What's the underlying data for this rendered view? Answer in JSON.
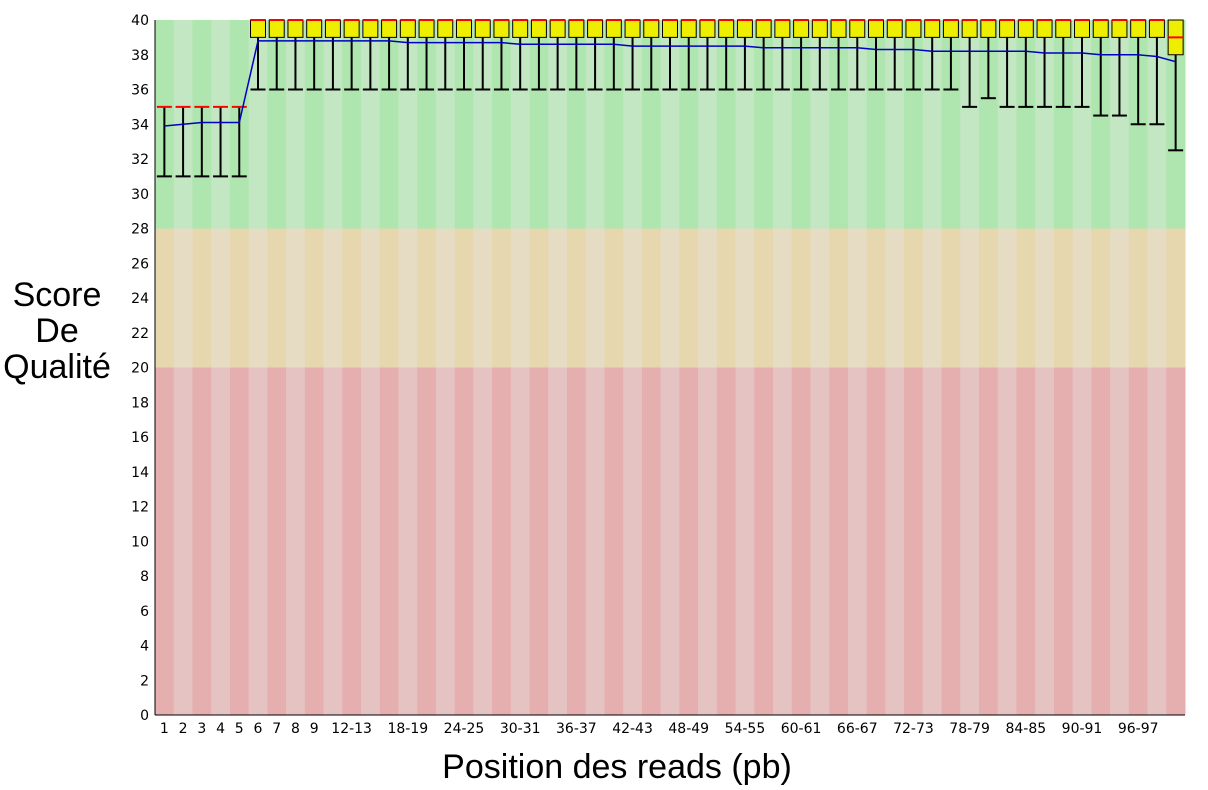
{
  "chart_data": {
    "type": "box",
    "title": "",
    "xlabel": "Position des reads (pb)",
    "ylabel": [
      "Score",
      "De",
      "Qualité"
    ],
    "ylim": [
      0,
      40
    ],
    "yticks": [
      0,
      2,
      4,
      6,
      8,
      10,
      12,
      14,
      16,
      18,
      20,
      22,
      24,
      26,
      28,
      30,
      32,
      34,
      36,
      38,
      40
    ],
    "bands": [
      {
        "name": "poor",
        "from": 0,
        "to": 20,
        "colors": [
          "#e6afaf",
          "#e6c3c3"
        ]
      },
      {
        "name": "reasonable",
        "from": 20,
        "to": 28,
        "colors": [
          "#e6d7af",
          "#e6dcc3"
        ]
      },
      {
        "name": "good",
        "from": 28,
        "to": 40,
        "colors": [
          "#afe6af",
          "#c3e6c3"
        ]
      }
    ],
    "categories": [
      "1",
      "2",
      "3",
      "4",
      "5",
      "6",
      "7",
      "8",
      "9",
      "10-11",
      "12-13",
      "14-15",
      "16-17",
      "18-19",
      "20-21",
      "22-23",
      "24-25",
      "26-27",
      "28-29",
      "30-31",
      "32-33",
      "34-35",
      "36-37",
      "38-39",
      "40-41",
      "42-43",
      "44-45",
      "46-47",
      "48-49",
      "50-51",
      "52-53",
      "54-55",
      "56-57",
      "58-59",
      "60-61",
      "62-63",
      "64-65",
      "66-67",
      "68-69",
      "70-71",
      "72-73",
      "74-75",
      "76-77",
      "78-79",
      "80-81",
      "82-83",
      "84-85",
      "86-87",
      "88-89",
      "90-91",
      "92-93",
      "94-95",
      "96-97",
      "98-99",
      "100-101"
    ],
    "visible_tick_labels": [
      "1",
      "2",
      "3",
      "4",
      "5",
      "6",
      "7",
      "8",
      "9",
      "12-13",
      "18-19",
      "24-25",
      "30-31",
      "36-37",
      "42-43",
      "48-49",
      "54-55",
      "60-61",
      "66-67",
      "72-73",
      "78-79",
      "84-85",
      "90-91",
      "96-97"
    ],
    "lower_whisker": [
      31,
      31,
      31,
      31,
      31,
      36,
      36,
      36,
      36,
      36,
      36,
      36,
      36,
      36,
      36,
      36,
      36,
      36,
      36,
      36,
      36,
      36,
      36,
      36,
      36,
      36,
      36,
      36,
      36,
      36,
      36,
      36,
      36,
      36,
      36,
      36,
      36,
      36,
      36,
      36,
      36,
      36,
      36,
      35,
      35.5,
      35,
      35,
      35,
      35,
      35,
      34.5,
      34.5,
      34,
      34,
      32.5
    ],
    "q1": [
      35,
      35,
      35,
      35,
      35,
      39,
      39,
      39,
      39,
      39,
      39,
      39,
      39,
      39,
      39,
      39,
      39,
      39,
      39,
      39,
      39,
      39,
      39,
      39,
      39,
      39,
      39,
      39,
      39,
      39,
      39,
      39,
      39,
      39,
      39,
      39,
      39,
      39,
      39,
      39,
      39,
      39,
      39,
      39,
      39,
      39,
      39,
      39,
      39,
      39,
      39,
      39,
      39,
      39,
      38
    ],
    "median": [
      35,
      35,
      35,
      35,
      35,
      40,
      40,
      40,
      40,
      40,
      40,
      40,
      40,
      40,
      40,
      40,
      40,
      40,
      40,
      40,
      40,
      40,
      40,
      40,
      40,
      40,
      40,
      40,
      40,
      40,
      40,
      40,
      40,
      40,
      40,
      40,
      40,
      40,
      40,
      40,
      40,
      40,
      40,
      40,
      40,
      40,
      40,
      40,
      40,
      40,
      40,
      40,
      40,
      40,
      39
    ],
    "q3": [
      35,
      35,
      35,
      35,
      35,
      40,
      40,
      40,
      40,
      40,
      40,
      40,
      40,
      40,
      40,
      40,
      40,
      40,
      40,
      40,
      40,
      40,
      40,
      40,
      40,
      40,
      40,
      40,
      40,
      40,
      40,
      40,
      40,
      40,
      40,
      40,
      40,
      40,
      40,
      40,
      40,
      40,
      40,
      40,
      40,
      40,
      40,
      40,
      40,
      40,
      40,
      40,
      40,
      40,
      40
    ],
    "upper_whisker": [
      35,
      35,
      35,
      35,
      35,
      40,
      40,
      40,
      40,
      40,
      40,
      40,
      40,
      40,
      40,
      40,
      40,
      40,
      40,
      40,
      40,
      40,
      40,
      40,
      40,
      40,
      40,
      40,
      40,
      40,
      40,
      40,
      40,
      40,
      40,
      40,
      40,
      40,
      40,
      40,
      40,
      40,
      40,
      40,
      40,
      40,
      40,
      40,
      40,
      40,
      40,
      40,
      40,
      40,
      40
    ],
    "mean": [
      33.9,
      34.0,
      34.1,
      34.1,
      34.1,
      38.8,
      38.8,
      38.8,
      38.8,
      38.8,
      38.8,
      38.8,
      38.8,
      38.7,
      38.7,
      38.7,
      38.7,
      38.7,
      38.7,
      38.6,
      38.6,
      38.6,
      38.6,
      38.6,
      38.6,
      38.5,
      38.5,
      38.5,
      38.5,
      38.5,
      38.5,
      38.5,
      38.4,
      38.4,
      38.4,
      38.4,
      38.4,
      38.4,
      38.3,
      38.3,
      38.3,
      38.2,
      38.2,
      38.2,
      38.2,
      38.2,
      38.2,
      38.1,
      38.1,
      38.1,
      38.0,
      38.0,
      38.0,
      37.9,
      37.6
    ],
    "colors": {
      "box": "#eeee00",
      "box_stroke": "#000000",
      "median": "#ff0000",
      "mean": "#0000c0",
      "whisker": "#000000"
    }
  }
}
